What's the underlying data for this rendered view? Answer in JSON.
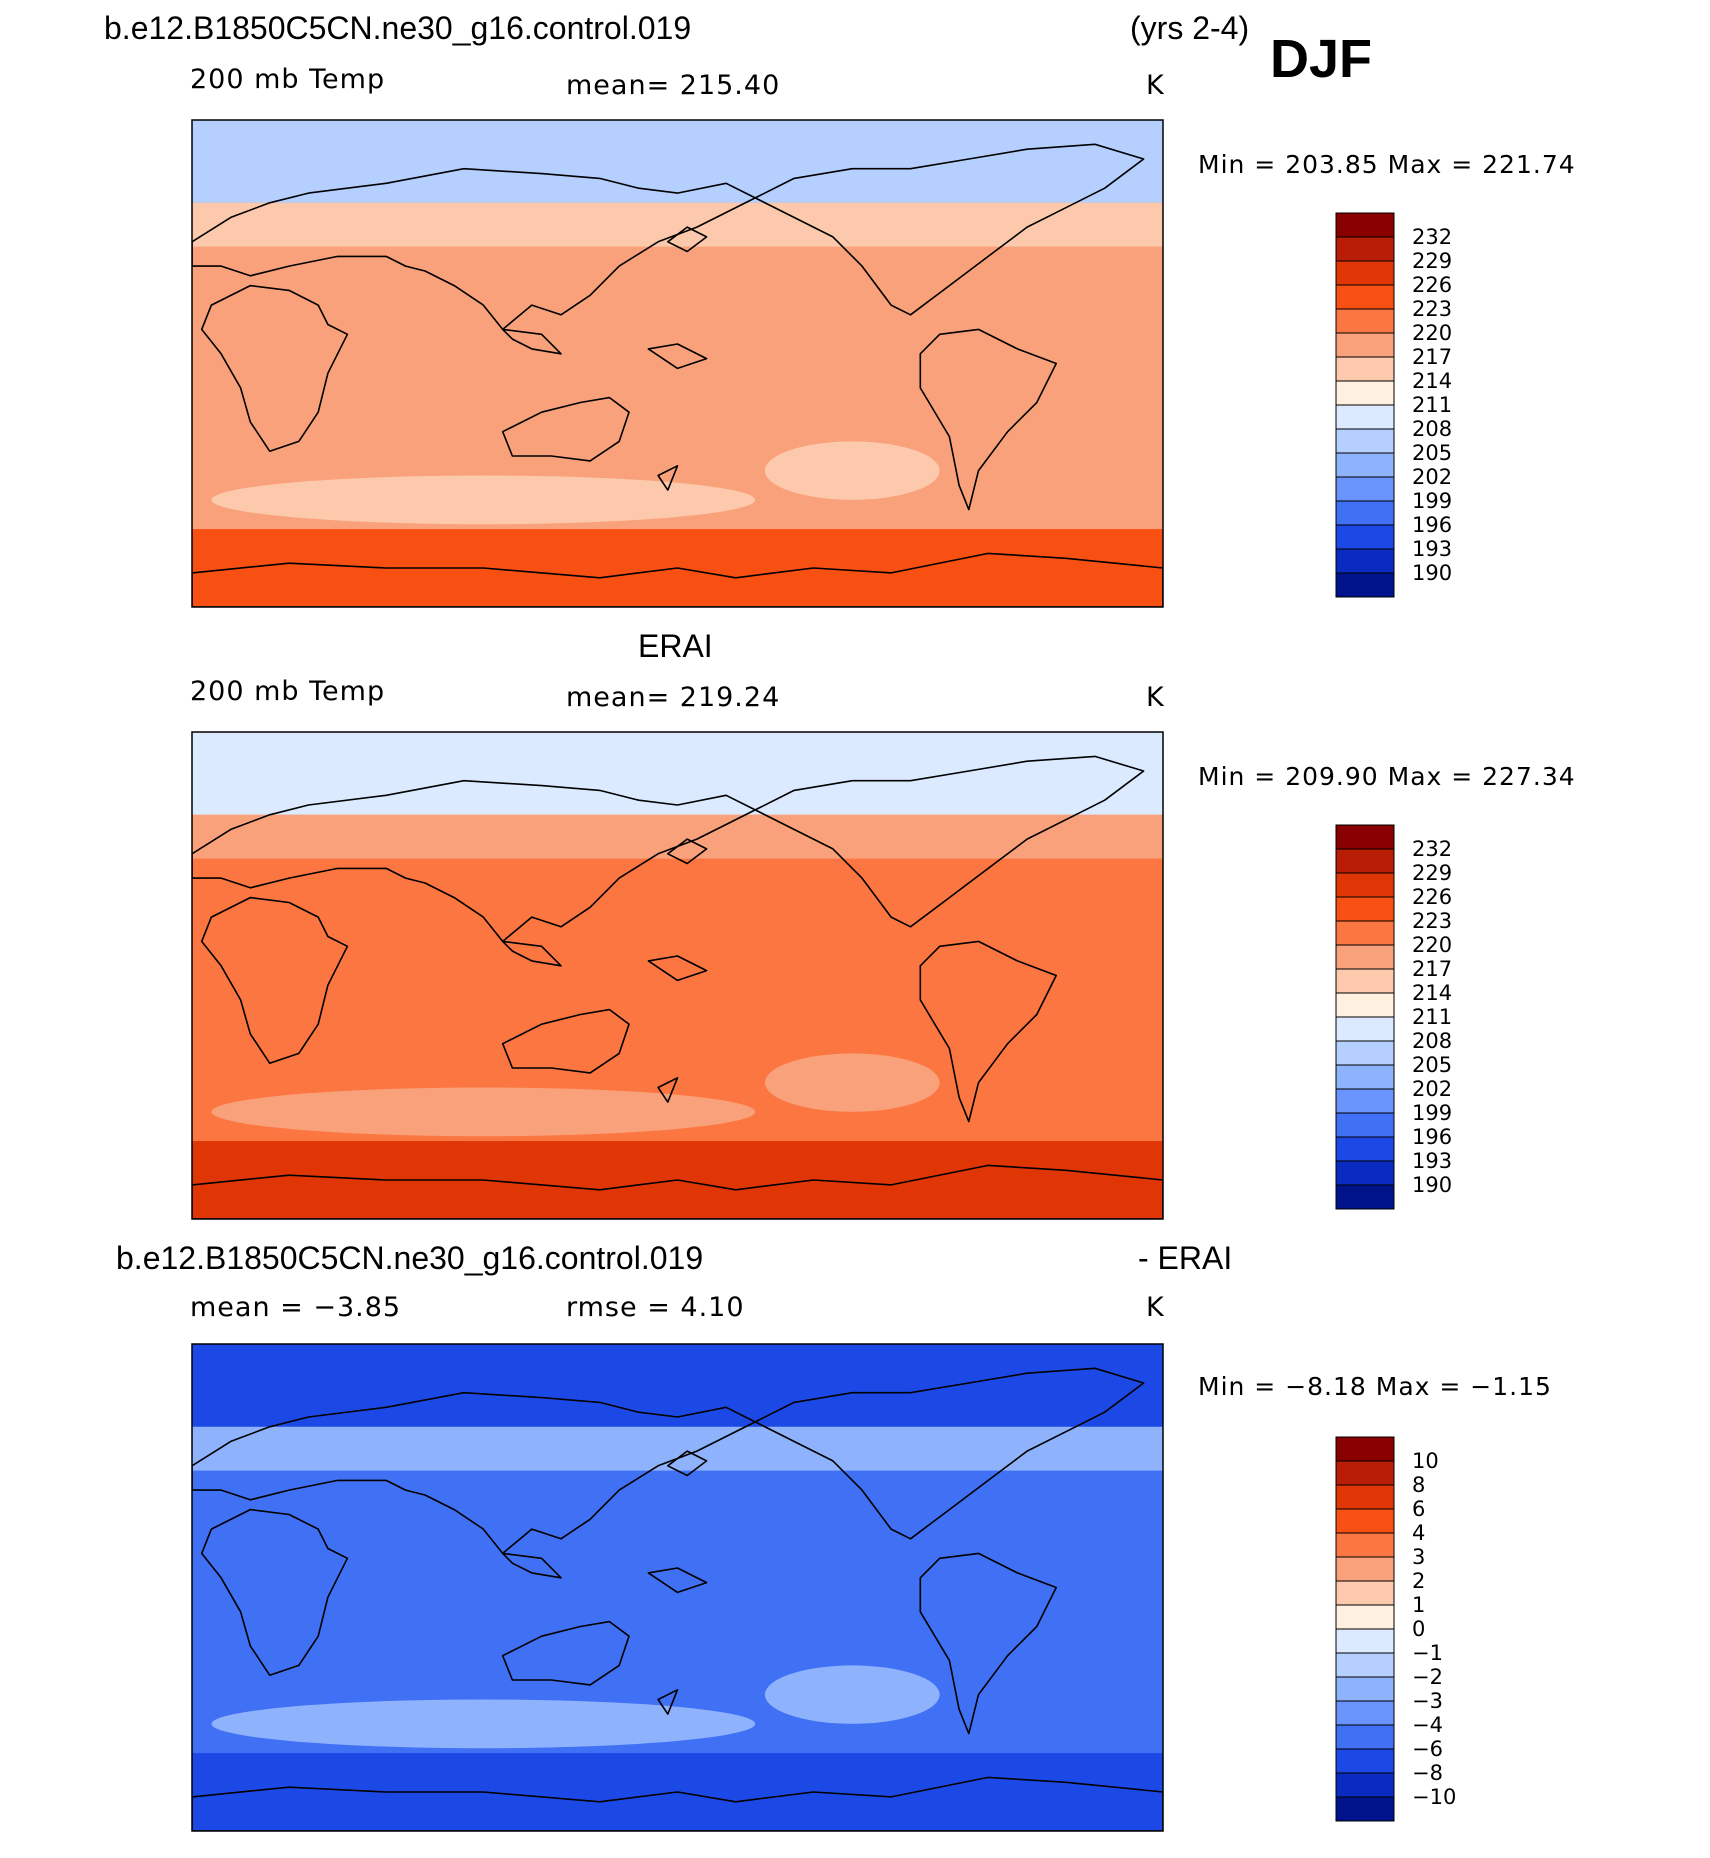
{
  "header": {
    "case_name": "b.e12.B1850C5CN.ne30_g16.control.019",
    "years": "(yrs 2-4)",
    "season": "DJF"
  },
  "panels": [
    {
      "title": "",
      "variable": "200 mb Temp",
      "stat_text": "mean=  215.40",
      "units": "K",
      "minmax": "Min  =  203.85  Max  =  221.74",
      "levels": [
        "232",
        "229",
        "226",
        "223",
        "220",
        "217",
        "214",
        "211",
        "208",
        "205",
        "202",
        "199",
        "196",
        "193",
        "190"
      ],
      "colors": [
        "#8a0000",
        "#b81d06",
        "#e03606",
        "#f84f12",
        "#fb7640",
        "#f9a17a",
        "#fdc9ad",
        "#fff0e0",
        "#dbeaff",
        "#b5cffe",
        "#8fb2fd",
        "#6894fb",
        "#4070f4",
        "#1c49e6",
        "#0a2bc2",
        "#00138a"
      ],
      "fill": {
        "base": "#f9a17a",
        "accent": "#fdc9ad",
        "cold": "#b5cffe",
        "south": "#f84f12"
      }
    },
    {
      "title": "ERAI",
      "variable": "200 mb Temp",
      "stat_text": "mean=  219.24",
      "units": "K",
      "minmax": "Min  =  209.90  Max  =  227.34",
      "levels": [
        "232",
        "229",
        "226",
        "223",
        "220",
        "217",
        "214",
        "211",
        "208",
        "205",
        "202",
        "199",
        "196",
        "193",
        "190"
      ],
      "colors": [
        "#8a0000",
        "#b81d06",
        "#e03606",
        "#f84f12",
        "#fb7640",
        "#f9a17a",
        "#fdc9ad",
        "#fff0e0",
        "#dbeaff",
        "#b5cffe",
        "#8fb2fd",
        "#6894fb",
        "#4070f4",
        "#1c49e6",
        "#0a2bc2",
        "#00138a"
      ],
      "fill": {
        "base": "#fb7640",
        "accent": "#f9a17a",
        "cold": "#dbeaff",
        "south": "#e03606"
      }
    },
    {
      "title": "b.e12.B1850C5CN.ne30_g16.control.019",
      "title_right": "- ERAI",
      "variable": "mean  =     −3.85",
      "stat_text": "rmse  =     4.10",
      "units": "K",
      "minmax": "Min  =    −8.18  Max  =   −1.15",
      "levels": [
        "10",
        "8",
        "6",
        "4",
        "3",
        "2",
        "1",
        "0",
        "−1",
        "−2",
        "−3",
        "−4",
        "−6",
        "−8",
        "−10"
      ],
      "colors": [
        "#8a0000",
        "#b81d06",
        "#e03606",
        "#f84f12",
        "#fb7640",
        "#f9a17a",
        "#fdc9ad",
        "#fff0e0",
        "#dbeaff",
        "#b5cffe",
        "#8fb2fd",
        "#6894fb",
        "#4070f4",
        "#1c49e6",
        "#0a2bc2",
        "#00138a"
      ],
      "fill": {
        "base": "#4070f4",
        "accent": "#8fb2fd",
        "cold": "#1c49e6",
        "south": "#1c49e6"
      }
    }
  ],
  "chart_data": [
    {
      "type": "heatmap",
      "title": "b.e12.B1850C5CN.ne30_g16.control.019",
      "variable": "200 mb Temp",
      "units": "K",
      "mean": 215.4,
      "min": 203.85,
      "max": 221.74,
      "levels": [
        190,
        193,
        196,
        199,
        202,
        205,
        208,
        211,
        214,
        217,
        220,
        223,
        226,
        229,
        232
      ]
    },
    {
      "type": "heatmap",
      "title": "ERAI",
      "variable": "200 mb Temp",
      "units": "K",
      "mean": 219.24,
      "min": 209.9,
      "max": 227.34,
      "levels": [
        190,
        193,
        196,
        199,
        202,
        205,
        208,
        211,
        214,
        217,
        220,
        223,
        226,
        229,
        232
      ]
    },
    {
      "type": "heatmap",
      "title": "b.e12.B1850C5CN.ne30_g16.control.019 - ERAI",
      "units": "K",
      "mean": -3.85,
      "rmse": 4.1,
      "min": -8.18,
      "max": -1.15,
      "levels": [
        -10,
        -8,
        -6,
        -4,
        -3,
        -2,
        -1,
        0,
        1,
        2,
        3,
        4,
        6,
        8,
        10
      ]
    }
  ]
}
